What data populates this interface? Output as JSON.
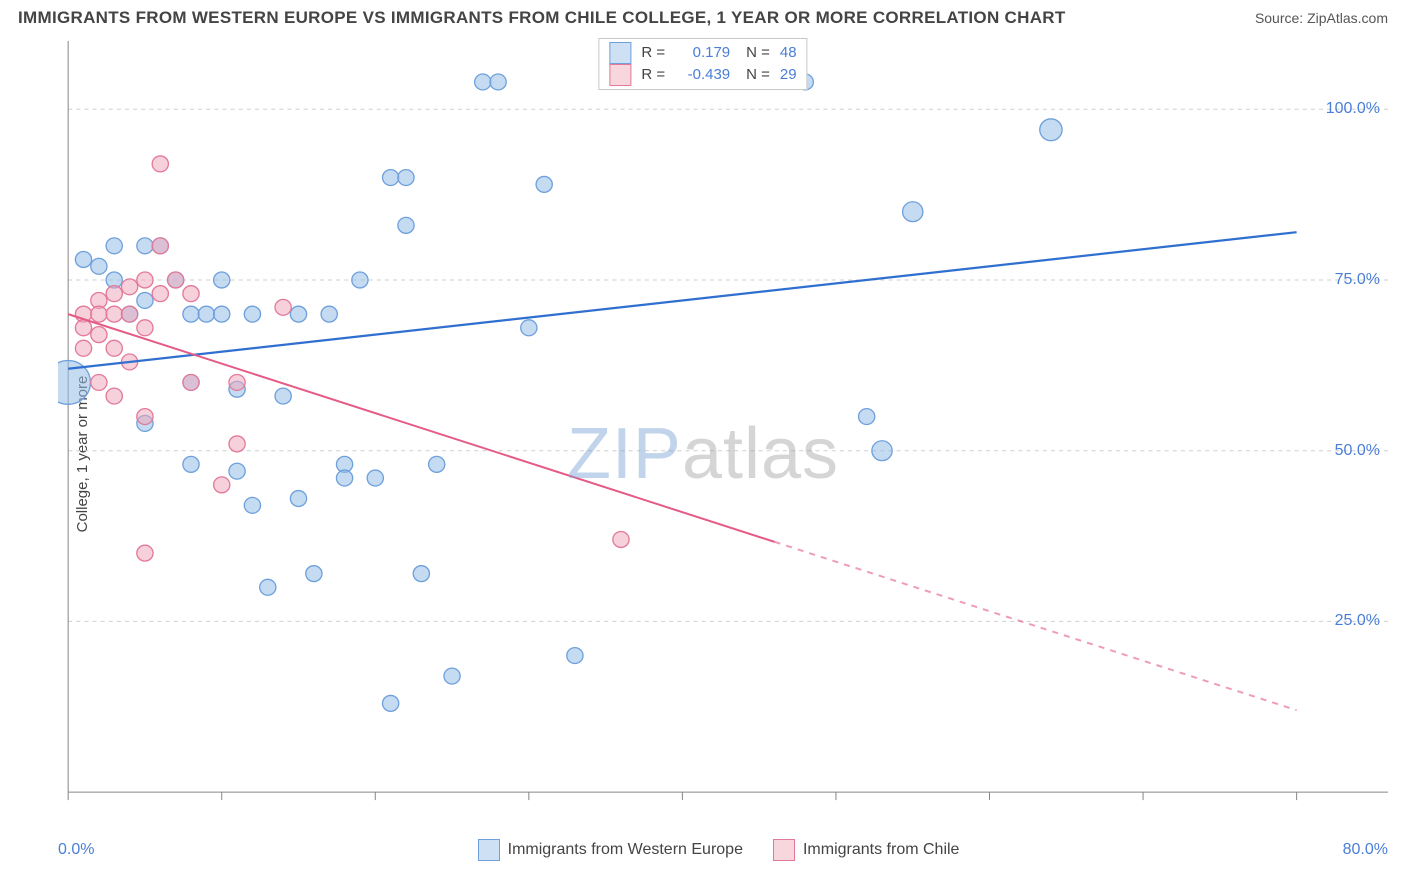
{
  "header": {
    "title": "IMMIGRANTS FROM WESTERN EUROPE VS IMMIGRANTS FROM CHILE COLLEGE, 1 YEAR OR MORE CORRELATION CHART",
    "source": "Source: ZipAtlas.com"
  },
  "watermark": {
    "part1": "ZIP",
    "part2": "atlas"
  },
  "chart": {
    "type": "scatter-with-regression",
    "ylabel": "College, 1 year or more",
    "xlim": [
      0,
      80
    ],
    "ylim": [
      0,
      110
    ],
    "x_tick_positions": [
      0,
      10,
      20,
      30,
      40,
      50,
      60,
      70,
      80
    ],
    "x_tick_labels_shown": {
      "0": "0.0%",
      "80": "80.0%"
    },
    "y_gridlines": [
      25,
      50,
      75,
      100
    ],
    "y_tick_labels": {
      "25": "25.0%",
      "50": "50.0%",
      "75": "75.0%",
      "100": "100.0%"
    },
    "background_color": "#ffffff",
    "grid_color": "#cfcfcf",
    "axis_color": "#888888",
    "tick_label_color": "#4a7ed8",
    "tick_label_fontsize": 16,
    "title_fontsize": 17,
    "title_color": "#444444",
    "ylabel_fontsize": 15,
    "corr_box": {
      "border_color": "#c8c8c8",
      "background": "#ffffff",
      "rows": [
        {
          "swatch_fill": "#cde0f4",
          "swatch_stroke": "#6fa0dc",
          "r_label": "R =",
          "r_value": "0.179",
          "n_label": "N =",
          "n_value": "48"
        },
        {
          "swatch_fill": "#f7d6de",
          "swatch_stroke": "#e37998",
          "r_label": "R =",
          "r_value": "-0.439",
          "n_label": "N =",
          "n_value": "29"
        }
      ]
    },
    "legend": [
      {
        "swatch_fill": "#cde0f4",
        "swatch_stroke": "#6fa0dc",
        "label": "Immigrants from Western Europe"
      },
      {
        "swatch_fill": "#f7d6de",
        "swatch_stroke": "#e37998",
        "label": "Immigrants from Chile"
      }
    ],
    "series": [
      {
        "name": "Immigrants from Western Europe",
        "marker_fill": "rgba(148,190,232,0.55)",
        "marker_stroke": "#6fa0dc",
        "marker_stroke_width": 1.3,
        "default_radius": 8,
        "trend": {
          "color": "#2f6fd0",
          "width": 2.2,
          "x1": 0,
          "y1": 62,
          "x2": 80,
          "y2": 82,
          "dash_after_x": null
        },
        "points": [
          {
            "x": 0,
            "y": 60,
            "r": 22
          },
          {
            "x": 1,
            "y": 78,
            "r": 8
          },
          {
            "x": 2,
            "y": 77,
            "r": 8
          },
          {
            "x": 3,
            "y": 80,
            "r": 8
          },
          {
            "x": 3,
            "y": 75,
            "r": 8
          },
          {
            "x": 4,
            "y": 70,
            "r": 8
          },
          {
            "x": 5,
            "y": 80,
            "r": 8
          },
          {
            "x": 5,
            "y": 72,
            "r": 8
          },
          {
            "x": 5,
            "y": 54,
            "r": 8
          },
          {
            "x": 6,
            "y": 80,
            "r": 8
          },
          {
            "x": 7,
            "y": 75,
            "r": 8
          },
          {
            "x": 8,
            "y": 70,
            "r": 8
          },
          {
            "x": 8,
            "y": 60,
            "r": 8
          },
          {
            "x": 8,
            "y": 48,
            "r": 8
          },
          {
            "x": 9,
            "y": 70,
            "r": 8
          },
          {
            "x": 10,
            "y": 75,
            "r": 8
          },
          {
            "x": 10,
            "y": 70,
            "r": 8
          },
          {
            "x": 11,
            "y": 59,
            "r": 8
          },
          {
            "x": 11,
            "y": 47,
            "r": 8
          },
          {
            "x": 12,
            "y": 70,
            "r": 8
          },
          {
            "x": 12,
            "y": 42,
            "r": 8
          },
          {
            "x": 13,
            "y": 30,
            "r": 8
          },
          {
            "x": 14,
            "y": 58,
            "r": 8
          },
          {
            "x": 15,
            "y": 70,
            "r": 8
          },
          {
            "x": 15,
            "y": 43,
            "r": 8
          },
          {
            "x": 16,
            "y": 32,
            "r": 8
          },
          {
            "x": 17,
            "y": 70,
            "r": 8
          },
          {
            "x": 18,
            "y": 48,
            "r": 8
          },
          {
            "x": 18,
            "y": 46,
            "r": 8
          },
          {
            "x": 19,
            "y": 75,
            "r": 8
          },
          {
            "x": 20,
            "y": 46,
            "r": 8
          },
          {
            "x": 21,
            "y": 90,
            "r": 8
          },
          {
            "x": 21,
            "y": 13,
            "r": 8
          },
          {
            "x": 22,
            "y": 90,
            "r": 8
          },
          {
            "x": 22,
            "y": 83,
            "r": 8
          },
          {
            "x": 23,
            "y": 32,
            "r": 8
          },
          {
            "x": 24,
            "y": 48,
            "r": 8
          },
          {
            "x": 25,
            "y": 17,
            "r": 8
          },
          {
            "x": 27,
            "y": 104,
            "r": 8
          },
          {
            "x": 28,
            "y": 104,
            "r": 8
          },
          {
            "x": 30,
            "y": 68,
            "r": 8
          },
          {
            "x": 31,
            "y": 89,
            "r": 8
          },
          {
            "x": 33,
            "y": 20,
            "r": 8
          },
          {
            "x": 48,
            "y": 104,
            "r": 8
          },
          {
            "x": 53,
            "y": 50,
            "r": 10
          },
          {
            "x": 55,
            "y": 85,
            "r": 10
          },
          {
            "x": 64,
            "y": 97,
            "r": 11
          },
          {
            "x": 52,
            "y": 55,
            "r": 8
          }
        ]
      },
      {
        "name": "Immigrants from Chile",
        "marker_fill": "rgba(238,170,190,0.55)",
        "marker_stroke": "#e37998",
        "marker_stroke_width": 1.3,
        "default_radius": 8,
        "trend": {
          "color": "#e55b85",
          "width": 2.0,
          "x1": 0,
          "y1": 70,
          "x2": 80,
          "y2": 12,
          "dash_after_x": 46
        },
        "points": [
          {
            "x": 1,
            "y": 70,
            "r": 8
          },
          {
            "x": 1,
            "y": 68,
            "r": 8
          },
          {
            "x": 1,
            "y": 65,
            "r": 8
          },
          {
            "x": 2,
            "y": 72,
            "r": 8
          },
          {
            "x": 2,
            "y": 70,
            "r": 8
          },
          {
            "x": 2,
            "y": 67,
            "r": 8
          },
          {
            "x": 2,
            "y": 60,
            "r": 8
          },
          {
            "x": 3,
            "y": 73,
            "r": 8
          },
          {
            "x": 3,
            "y": 70,
            "r": 8
          },
          {
            "x": 3,
            "y": 65,
            "r": 8
          },
          {
            "x": 3,
            "y": 58,
            "r": 8
          },
          {
            "x": 4,
            "y": 74,
            "r": 8
          },
          {
            "x": 4,
            "y": 70,
            "r": 8
          },
          {
            "x": 4,
            "y": 63,
            "r": 8
          },
          {
            "x": 5,
            "y": 75,
            "r": 8
          },
          {
            "x": 5,
            "y": 68,
            "r": 8
          },
          {
            "x": 5,
            "y": 55,
            "r": 8
          },
          {
            "x": 5,
            "y": 35,
            "r": 8
          },
          {
            "x": 6,
            "y": 80,
            "r": 8
          },
          {
            "x": 6,
            "y": 73,
            "r": 8
          },
          {
            "x": 6,
            "y": 92,
            "r": 8
          },
          {
            "x": 7,
            "y": 75,
            "r": 8
          },
          {
            "x": 8,
            "y": 73,
            "r": 8
          },
          {
            "x": 8,
            "y": 60,
            "r": 8
          },
          {
            "x": 10,
            "y": 45,
            "r": 8
          },
          {
            "x": 11,
            "y": 60,
            "r": 8
          },
          {
            "x": 11,
            "y": 51,
            "r": 8
          },
          {
            "x": 14,
            "y": 71,
            "r": 8
          },
          {
            "x": 36,
            "y": 37,
            "r": 8
          }
        ]
      }
    ]
  }
}
